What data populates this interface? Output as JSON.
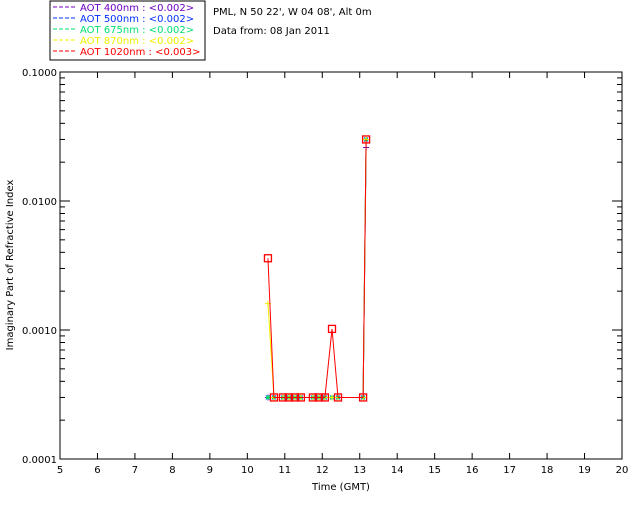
{
  "header": {
    "site": "PML, N 50 22', W 04 08', Alt 0m",
    "date": "Data from: 08 Jan 2011"
  },
  "chart_data": {
    "type": "line",
    "xlabel": "Time (GMT)",
    "ylabel": "Imaginary Part of Refractive Index",
    "xlim": [
      5,
      20
    ],
    "ylim": [
      0.0001,
      0.1
    ],
    "yscale": "log",
    "xticks": [
      "5",
      "6",
      "7",
      "8",
      "9",
      "10",
      "11",
      "12",
      "13",
      "14",
      "15",
      "16",
      "17",
      "18",
      "19",
      "20"
    ],
    "yticks": [
      {
        "v": 0.0001,
        "label": "0.0001"
      },
      {
        "v": 0.001,
        "label": "0.0010"
      },
      {
        "v": 0.01,
        "label": "0.0100"
      },
      {
        "v": 0.1,
        "label": "0.1000"
      }
    ],
    "legend_position": "top-left-outside",
    "series": [
      {
        "name": "AOT  400nm : <0.002>",
        "color": "#7000c0",
        "x": [
          10.55,
          10.71,
          10.95,
          11.11,
          11.27,
          11.43,
          11.75,
          11.91,
          12.07,
          12.26,
          12.42,
          13.09,
          13.17
        ],
        "values": [
          0.0003,
          0.0003,
          0.0003,
          0.0003,
          0.0003,
          0.0003,
          0.0003,
          0.0003,
          0.0003,
          0.0003,
          0.0003,
          0.0003,
          0.026
        ]
      },
      {
        "name": "AOT  500nm : <0.002>",
        "color": "#0030ff",
        "x": [
          10.55,
          10.71,
          10.95,
          11.11,
          11.27,
          11.43,
          11.75,
          11.91,
          12.07,
          12.26,
          12.42,
          13.09,
          13.17
        ],
        "values": [
          0.0003,
          0.0003,
          0.0003,
          0.0003,
          0.0003,
          0.0003,
          0.0003,
          0.0003,
          0.0003,
          0.0003,
          0.0003,
          0.0003,
          0.03
        ]
      },
      {
        "name": "AOT  675nm : <0.002>",
        "color": "#00e070",
        "x": [
          10.55,
          10.71,
          10.95,
          11.11,
          11.27,
          11.43,
          11.75,
          11.91,
          12.07,
          12.26,
          12.42,
          13.09,
          13.17
        ],
        "values": [
          0.0003,
          0.0003,
          0.0003,
          0.0003,
          0.0003,
          0.0003,
          0.0003,
          0.0003,
          0.0003,
          0.0003,
          0.0003,
          0.0003,
          0.03
        ]
      },
      {
        "name": "AOT  870nm : <0.002>",
        "color": "#f0f000",
        "x": [
          10.55,
          10.71,
          10.95,
          11.11,
          11.27,
          11.43,
          11.75,
          11.91,
          12.07,
          12.26,
          12.42,
          13.09,
          13.17
        ],
        "values": [
          0.0016,
          0.0003,
          0.0003,
          0.0003,
          0.0003,
          0.0003,
          0.0003,
          0.0003,
          0.0003,
          0.0003,
          0.0003,
          0.0003,
          0.03
        ]
      },
      {
        "name": "AOT 1020nm : <0.003>",
        "color": "#ff0000",
        "x": [
          10.55,
          10.71,
          10.95,
          11.11,
          11.27,
          11.43,
          11.75,
          11.91,
          12.07,
          12.26,
          12.42,
          13.09,
          13.17
        ],
        "values": [
          0.0036,
          0.0003,
          0.0003,
          0.0003,
          0.0003,
          0.0003,
          0.0003,
          0.0003,
          0.0003,
          0.00102,
          0.0003,
          0.0003,
          0.03
        ]
      }
    ]
  }
}
